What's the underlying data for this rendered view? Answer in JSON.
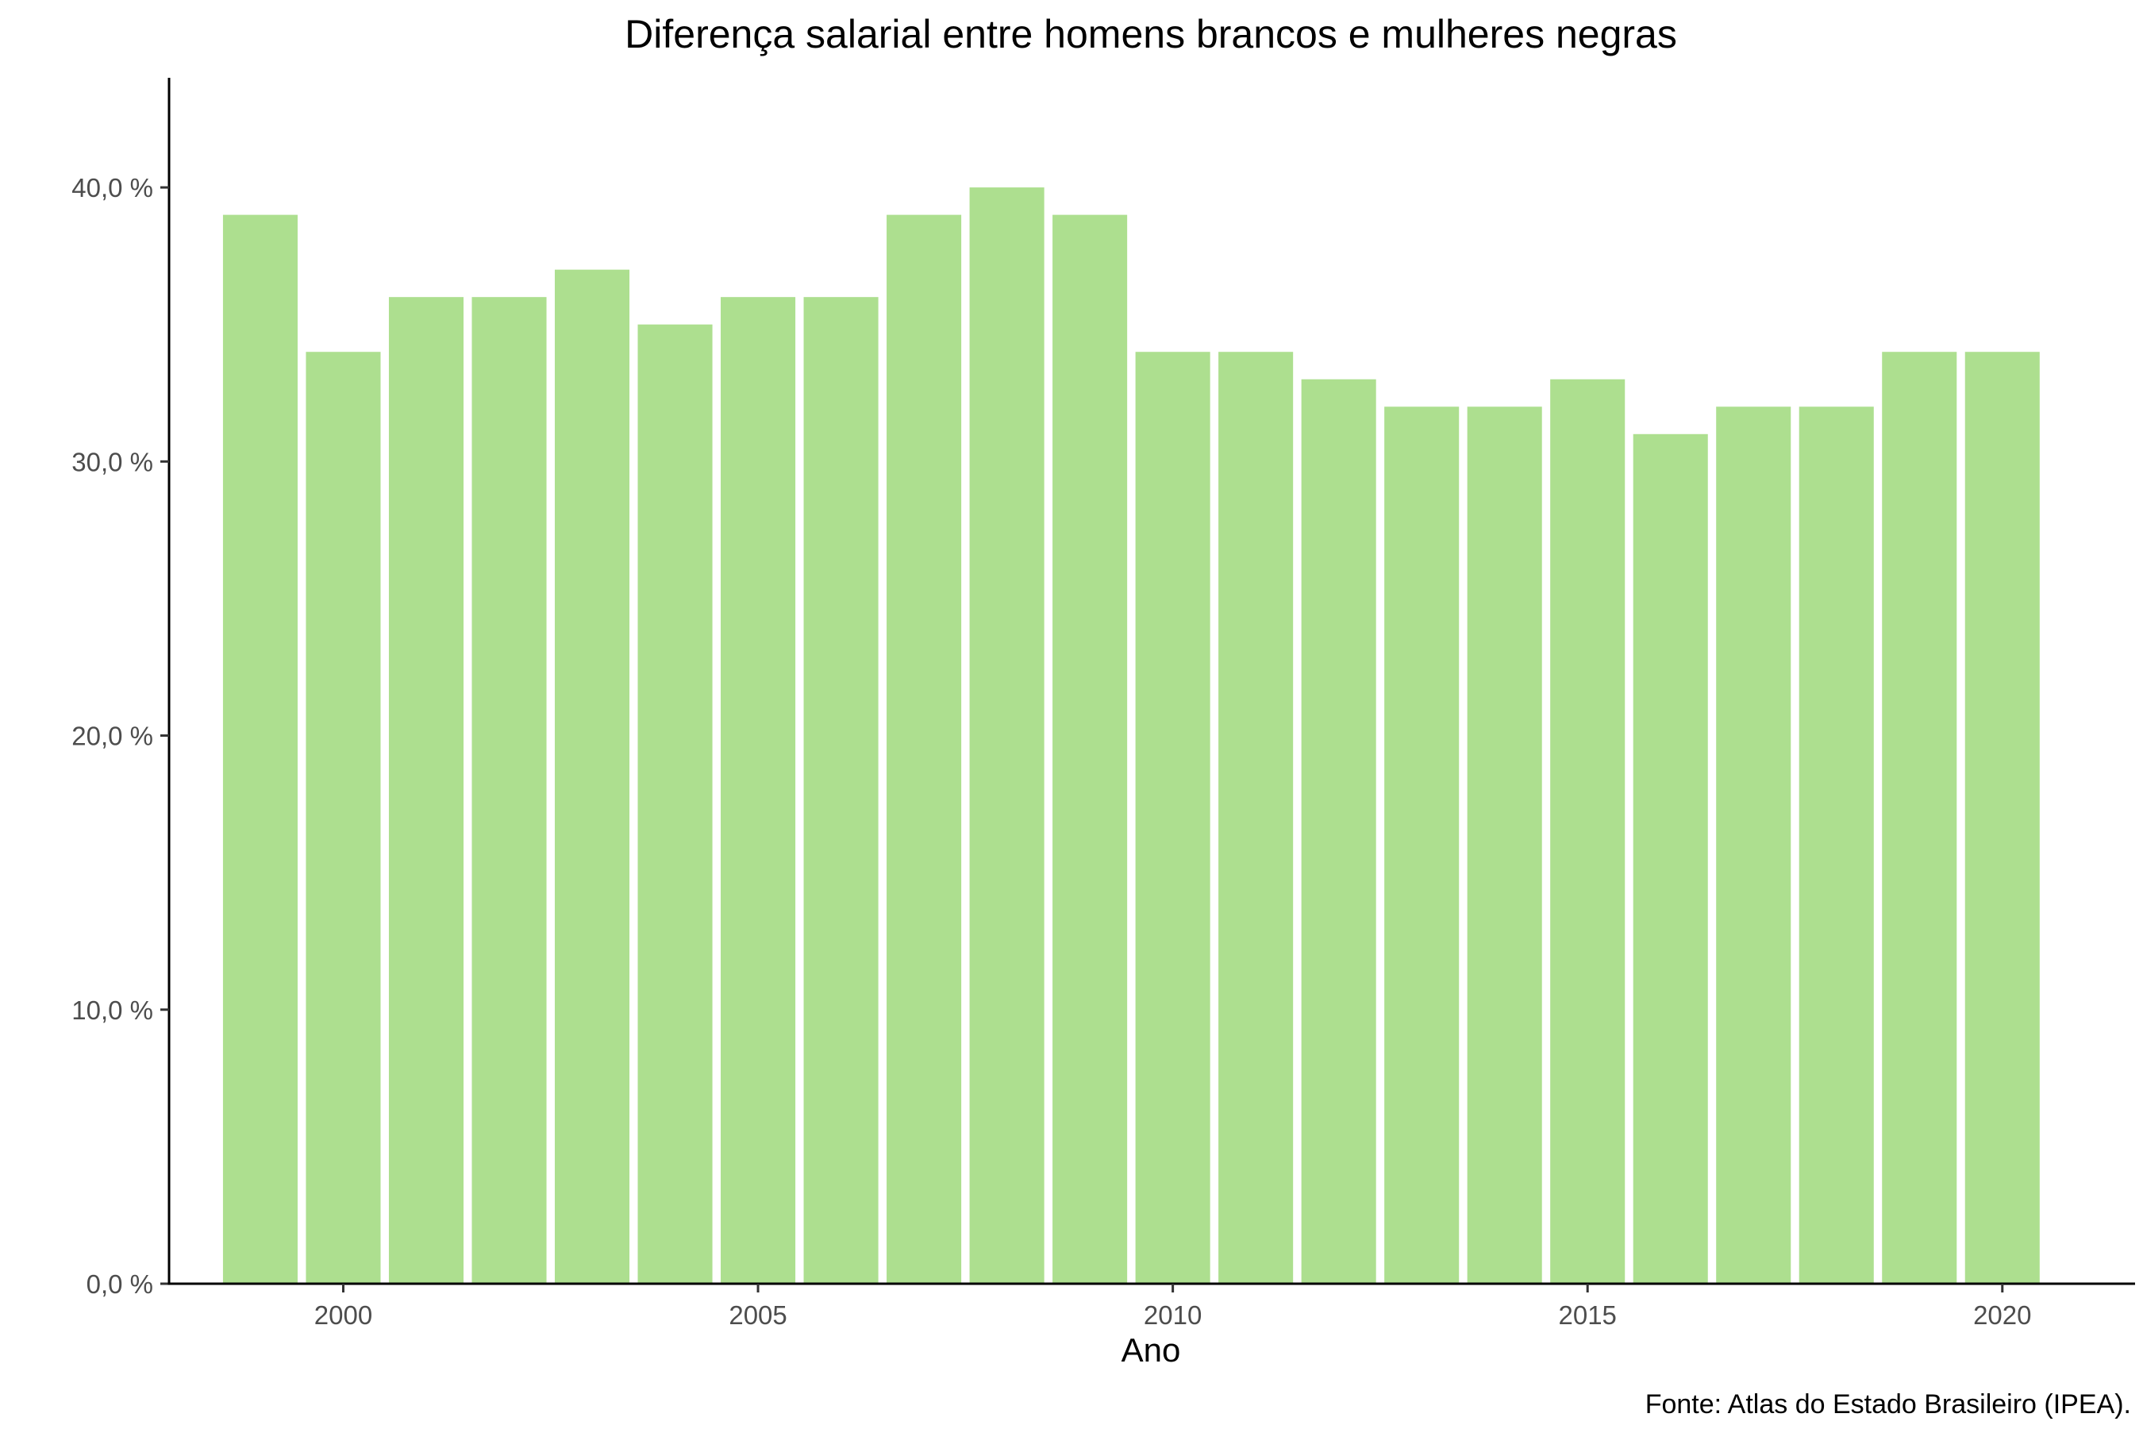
{
  "chart_data": {
    "type": "bar",
    "title": "Diferença salarial entre homens brancos e mulheres negras",
    "xlabel": "Ano",
    "ylabel": "",
    "caption": "Fonte: Atlas do Estado Brasileiro (IPEA).",
    "categories": [
      1999,
      2000,
      2001,
      2002,
      2003,
      2004,
      2005,
      2006,
      2007,
      2008,
      2009,
      2010,
      2011,
      2012,
      2013,
      2014,
      2015,
      2016,
      2017,
      2018,
      2019,
      2020
    ],
    "values": [
      39,
      34,
      36,
      36,
      37,
      35,
      36,
      36,
      39,
      40,
      39,
      34,
      34,
      33,
      32,
      32,
      33,
      31,
      32,
      32,
      34,
      34
    ],
    "xlim": [
      1997.9,
      2021.6
    ],
    "ylim": [
      0,
      44
    ],
    "x_ticks": [
      2000,
      2005,
      2010,
      2015,
      2020
    ],
    "x_tick_labels": [
      "2000",
      "2005",
      "2010",
      "2015",
      "2020"
    ],
    "y_ticks": [
      0,
      10,
      20,
      30,
      40
    ],
    "y_tick_labels": [
      "0,0 %",
      "10,0 %",
      "20,0 %",
      "30,0 %",
      "40,0 %"
    ],
    "bar_color": "#addf8f",
    "grid": false,
    "legend": "none"
  }
}
